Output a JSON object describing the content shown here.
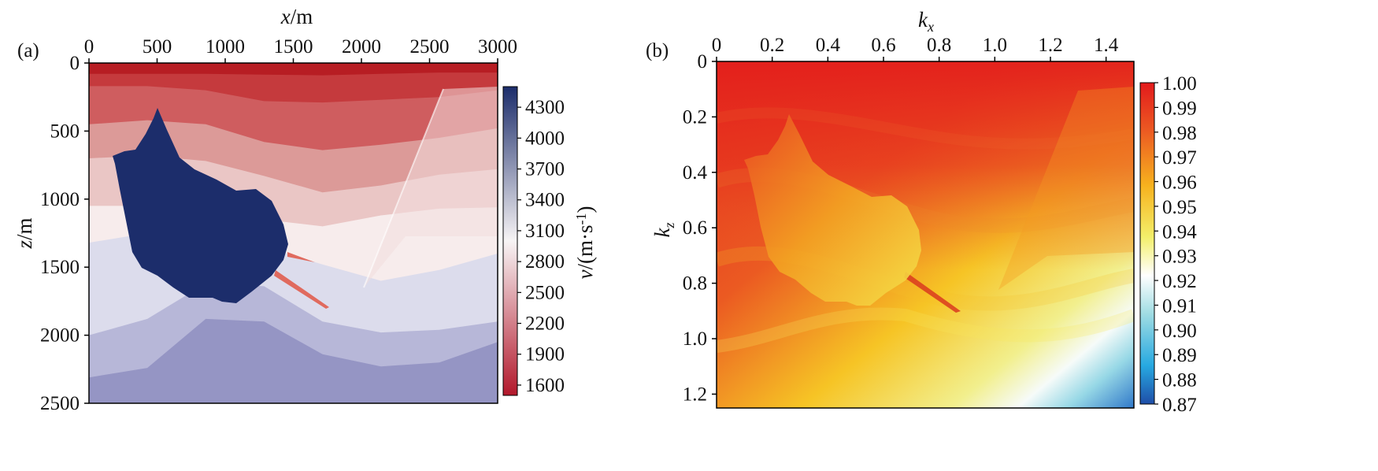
{
  "chart_data": [
    {
      "type": "heatmap",
      "panel_label": "(a)",
      "title": "",
      "xlabel_var": "x",
      "xlabel_unit": "/m",
      "ylabel_var": "z",
      "ylabel_unit": "/m",
      "xlim": [
        0,
        3000
      ],
      "ylim": [
        0,
        2500
      ],
      "x_ticks": [
        "0",
        "500",
        "1000",
        "1500",
        "2000",
        "2500",
        "3000"
      ],
      "y_ticks": [
        "0",
        "500",
        "1000",
        "1500",
        "2000",
        "2500"
      ],
      "colorbar": {
        "label_var": "v",
        "label_unit": "/(m·s",
        "label_exp": "-1",
        "label_close": ")",
        "range": [
          1500,
          4500
        ],
        "ticks": [
          "1600",
          "1900",
          "2200",
          "2500",
          "2800",
          "3100",
          "3400",
          "3700",
          "4000",
          "4300"
        ],
        "colormap": [
          "#b2182b",
          "#f7f4f5",
          "#1c2d6b"
        ]
      },
      "layers": [
        {
          "velocity": 1500,
          "color": "#b71d23",
          "top_depth": [
            0,
            0,
            0,
            0,
            0,
            0,
            0,
            0
          ]
        },
        {
          "velocity": 1700,
          "color": "#c53a3d",
          "top_depth": [
            80,
            80,
            80,
            85,
            90,
            80,
            70,
            70
          ]
        },
        {
          "velocity": 1900,
          "color": "#cf5d5f",
          "top_depth": [
            170,
            170,
            200,
            280,
            290,
            270,
            250,
            200
          ]
        },
        {
          "velocity": 2200,
          "color": "#dc9a98",
          "top_depth": [
            450,
            420,
            450,
            580,
            640,
            600,
            550,
            480
          ]
        },
        {
          "velocity": 2500,
          "color": "#eac6c5",
          "top_depth": [
            700,
            680,
            720,
            830,
            950,
            900,
            820,
            780
          ]
        },
        {
          "velocity": 2800,
          "color": "#f7ecec",
          "top_depth": [
            1050,
            1050,
            1080,
            1150,
            1200,
            1120,
            1070,
            1060
          ]
        },
        {
          "velocity": 3200,
          "color": "#dcdcec",
          "top_depth": [
            1320,
            1250,
            1280,
            1350,
            1480,
            1600,
            1520,
            1400
          ]
        },
        {
          "velocity": 3500,
          "color": "#b7b7d8",
          "top_depth": [
            2000,
            1880,
            1620,
            1640,
            1900,
            1980,
            1960,
            1900
          ]
        },
        {
          "velocity": 3800,
          "color": "#9595c4",
          "top_depth": [
            2310,
            2240,
            1880,
            1900,
            2140,
            2230,
            2200,
            2050
          ]
        }
      ],
      "salt_body_velocity": 4500,
      "salt_color": "#1c2d6b"
    },
    {
      "type": "heatmap",
      "panel_label": "(b)",
      "title": "",
      "xlabel_var": "k",
      "xlabel_sub": "x",
      "ylabel_var": "k",
      "ylabel_sub": "z",
      "xlim": [
        0,
        1.5
      ],
      "ylim": [
        0,
        1.25
      ],
      "x_ticks": [
        "0",
        "0.2",
        "0.4",
        "0.6",
        "0.8",
        "1.0",
        "1.2",
        "1.4"
      ],
      "y_ticks": [
        "0",
        "0.2",
        "0.4",
        "0.6",
        "0.8",
        "1.0",
        "1.2"
      ],
      "colorbar": {
        "range": [
          0.87,
          1.0
        ],
        "ticks": [
          "1.00",
          "0.99",
          "0.98",
          "0.97",
          "0.96",
          "0.95",
          "0.94",
          "0.93",
          "0.92",
          "0.91",
          "0.90",
          "0.89",
          "0.88",
          "0.87"
        ],
        "colormap": [
          "#1f4ea8",
          "#27a9e1",
          "#9fdce3",
          "#ffffff",
          "#f3ef6a",
          "#f7b21e",
          "#ec5a22",
          "#e31a1c"
        ]
      }
    }
  ]
}
